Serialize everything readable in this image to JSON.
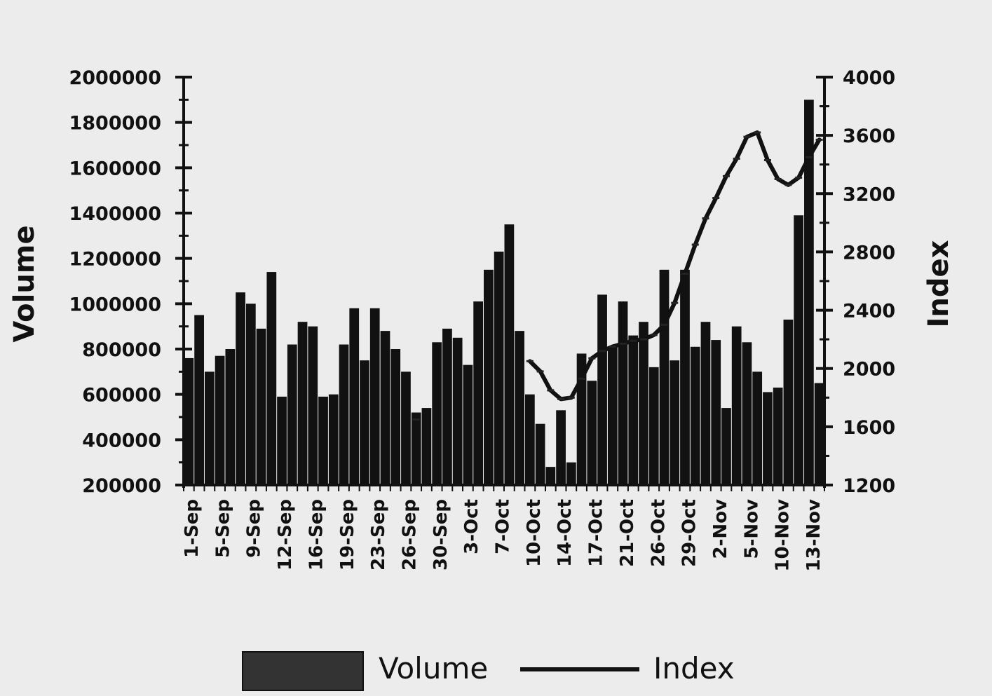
{
  "chart_data": {
    "type": "bar",
    "combo": "bar+line",
    "title": "",
    "ylabel": "Volume",
    "y2label": "Index",
    "ylim": [
      200000,
      2000000
    ],
    "y2lim": [
      1200,
      4000
    ],
    "yticks": [
      "2000000",
      "1800000",
      "1600000",
      "1400000",
      "1200000",
      "1000000",
      "800000",
      "600000",
      "400000",
      "200000"
    ],
    "y2ticks": [
      "4000",
      "3600",
      "3200",
      "2800",
      "2400",
      "2000",
      "1600",
      "1200"
    ],
    "category_labels": [
      "1-Sep",
      "5-Sep",
      "9-Sep",
      "12-Sep",
      "16-Sep",
      "19-Sep",
      "23-Sep",
      "26-Sep",
      "30-Sep",
      "3-Oct",
      "7-Oct",
      "10-Oct",
      "14-Oct",
      "17-Oct",
      "21-Oct",
      "26-Oct",
      "29-Oct",
      "2-Nov",
      "5-Nov",
      "10-Nov",
      "13-Nov"
    ],
    "series": [
      {
        "name": "Volume",
        "kind": "bar",
        "axis": "left",
        "color": "#111111",
        "values": [
          760000,
          950000,
          700000,
          770000,
          800000,
          1050000,
          1000000,
          890000,
          1140000,
          590000,
          820000,
          920000,
          900000,
          590000,
          600000,
          820000,
          980000,
          750000,
          980000,
          880000,
          800000,
          700000,
          520000,
          540000,
          830000,
          890000,
          850000,
          730000,
          1010000,
          1150000,
          1230000,
          1350000,
          880000,
          600000,
          470000,
          280000,
          530000,
          300000,
          780000,
          660000,
          1040000,
          810000,
          1010000,
          860000,
          920000,
          720000,
          1150000,
          750000,
          1150000,
          810000,
          920000,
          840000,
          540000,
          900000,
          830000,
          700000,
          610000,
          630000,
          930000,
          1390000,
          1900000,
          650000
        ]
      },
      {
        "name": "Index",
        "kind": "line",
        "axis": "right",
        "color": "#111111",
        "values": [
          null,
          null,
          null,
          null,
          null,
          null,
          null,
          null,
          null,
          null,
          null,
          null,
          null,
          null,
          null,
          null,
          null,
          null,
          null,
          null,
          null,
          null,
          1650,
          null,
          null,
          null,
          null,
          null,
          null,
          null,
          null,
          null,
          null,
          2050,
          1980,
          1850,
          1790,
          1800,
          1930,
          2070,
          2120,
          2150,
          2170,
          2190,
          2200,
          2230,
          2300,
          2450,
          2650,
          2850,
          3030,
          3170,
          3320,
          3440,
          3590,
          3620,
          3430,
          3300,
          3260,
          3310,
          3450,
          3570
        ]
      }
    ],
    "legend": [
      "Volume",
      "Index"
    ],
    "legend_position": "bottom",
    "grid": false
  }
}
